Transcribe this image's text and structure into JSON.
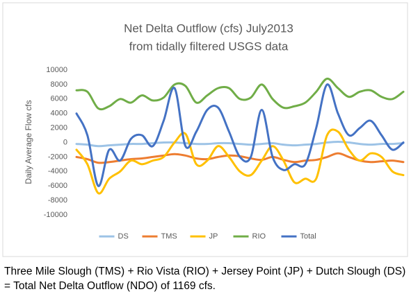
{
  "chart_data": {
    "type": "line",
    "title": "Net Delta Outflow (cfs) July2013",
    "subtitle": "from tidally filtered USGS data",
    "y_label": "Daily Average Flow cfs",
    "categories": [
      null,
      null,
      null,
      null,
      null,
      null,
      null,
      null,
      null,
      null,
      null,
      null,
      null,
      null,
      null,
      null,
      null,
      null,
      null,
      null,
      null,
      null,
      null,
      null,
      null,
      null,
      null,
      null,
      null,
      null,
      null
    ],
    "ylim": [
      -10000,
      10000
    ],
    "yticks": [
      10000,
      8000,
      6000,
      4000,
      2000,
      0,
      -2000,
      -4000,
      -6000,
      -8000,
      -10000
    ],
    "grid": false,
    "legend": "bottom",
    "series": [
      {
        "name": "DS",
        "color": "#9dc3e6",
        "values": [
          -200,
          -300,
          -500,
          -400,
          -300,
          -200,
          -200,
          -100,
          0,
          0,
          -100,
          -200,
          -200,
          -100,
          -100,
          -200,
          -300,
          -200,
          -100,
          -300,
          -400,
          -300,
          -200,
          0,
          100,
          0,
          -200,
          -300,
          -200,
          -200,
          -100
        ]
      },
      {
        "name": "TMS",
        "color": "#ed7d31",
        "values": [
          -2000,
          -2300,
          -2800,
          -2700,
          -2500,
          -2300,
          -2200,
          -2000,
          -1800,
          -1600,
          -1800,
          -2200,
          -2300,
          -2000,
          -1800,
          -1900,
          -2200,
          -2400,
          -2000,
          -2400,
          -2700,
          -2500,
          -2400,
          -2000,
          -1500,
          -2000,
          -2500,
          -2700,
          -2600,
          -2500,
          -2700
        ]
      },
      {
        "name": "JP",
        "color": "#ffc000",
        "values": [
          -1000,
          -3000,
          -7000,
          -5000,
          -4000,
          -2500,
          -3000,
          -2500,
          -2000,
          0,
          1200,
          -3000,
          -2500,
          -500,
          -2000,
          -4000,
          -4500,
          -2500,
          -500,
          -2500,
          -5500,
          -5000,
          -5000,
          1000,
          1500,
          -1000,
          -2500,
          -1500,
          -2000,
          -4000,
          -4500
        ]
      },
      {
        "name": "RIO",
        "color": "#70ad47",
        "values": [
          7200,
          7000,
          4700,
          5000,
          6000,
          5500,
          6500,
          5800,
          6200,
          8000,
          7800,
          5500,
          6500,
          7500,
          7500,
          6000,
          6200,
          8000,
          6000,
          4800,
          5000,
          5500,
          7000,
          8800,
          7500,
          6300,
          7000,
          7200,
          6300,
          6000,
          7000
        ]
      },
      {
        "name": "Total",
        "color": "#4472c4",
        "values": [
          4000,
          1000,
          -6000,
          -1000,
          -2500,
          500,
          1000,
          -500,
          3000,
          7500,
          -500,
          1500,
          4500,
          4800,
          1500,
          -2000,
          -2000,
          4500,
          -2000,
          -3800,
          -3000,
          -3000,
          2000,
          8000,
          4000,
          1000,
          2000,
          3000,
          1000,
          -1000,
          0
        ]
      }
    ]
  },
  "caption": "Three Mile Slough (TMS) + Rio Vista (RIO) + Jersey Point (JP) + Dutch Slough (DS) = Total Net Delta Outflow (NDO) of 1169 cfs."
}
